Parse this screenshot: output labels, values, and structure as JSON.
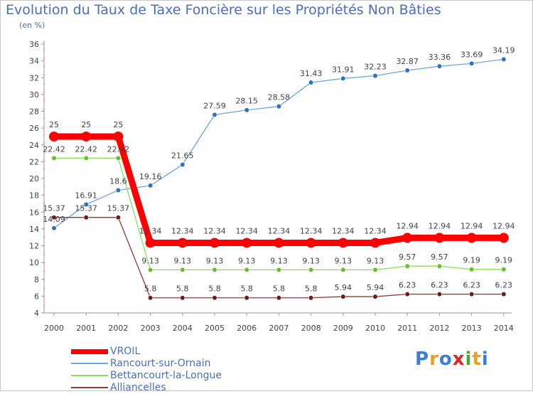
{
  "chart_data": {
    "type": "line",
    "title": "Evolution du Taux de Taxe Foncière sur les Propriétés Non Bâties",
    "ylabel": "(en %)",
    "xlabel": "",
    "ylim": [
      4,
      36
    ],
    "ytick_step": 2,
    "categories": [
      "2000",
      "2001",
      "2002",
      "2003",
      "2004",
      "2005",
      "2006",
      "2007",
      "2008",
      "2009",
      "2010",
      "2011",
      "2012",
      "2013",
      "2014"
    ],
    "series": [
      {
        "name": "VROIL",
        "color": "#ff0000",
        "style": "thick",
        "values": [
          25,
          25,
          25,
          12.34,
          12.34,
          12.34,
          12.34,
          12.34,
          12.34,
          12.34,
          12.34,
          12.94,
          12.94,
          12.94,
          12.94
        ],
        "labels": [
          "25",
          "25",
          "25",
          "12.34",
          "12.34",
          "12.34",
          "12.34",
          "12.34",
          "12.34",
          "12.34",
          "12.34",
          "12.94",
          "12.94",
          "12.94",
          "12.94"
        ]
      },
      {
        "name": "Rancourt-sur-Ornain",
        "color": "#6fa8dc",
        "marker": "#2f72b8",
        "style": "thin",
        "values": [
          14.09,
          16.91,
          18.6,
          19.16,
          21.65,
          27.59,
          28.15,
          28.58,
          31.43,
          31.91,
          32.23,
          32.87,
          33.36,
          33.69,
          34.19
        ],
        "labels": [
          "14.09",
          "16.91",
          "18.6",
          "19.16",
          "21.65",
          "27.59",
          "28.15",
          "28.58",
          "31.43",
          "31.91",
          "32.23",
          "32.87",
          "33.36",
          "33.69",
          "34.19"
        ]
      },
      {
        "name": "Bettancourt-la-Longue",
        "color": "#8edb5e",
        "marker": "#62bf2d",
        "style": "thin",
        "values": [
          22.42,
          22.42,
          22.42,
          9.13,
          9.13,
          9.13,
          9.13,
          9.13,
          9.13,
          9.13,
          9.13,
          9.57,
          9.57,
          9.19,
          9.19
        ],
        "labels": [
          "22.42",
          "22.42",
          "22.42",
          "9.13",
          "9.13",
          "9.13",
          "9.13",
          "9.13",
          "9.13",
          "9.13",
          "9.13",
          "9.57",
          "9.57",
          "9.19",
          "9.19"
        ]
      },
      {
        "name": "Alliancelles",
        "color": "#8b3a3a",
        "marker": "#6b1d1d",
        "style": "thin",
        "values": [
          15.37,
          15.37,
          15.37,
          5.8,
          5.8,
          5.8,
          5.8,
          5.8,
          5.8,
          5.94,
          5.94,
          6.23,
          6.23,
          6.23,
          6.23
        ],
        "labels": [
          "15.37",
          "15.37",
          "15.37",
          "5.8",
          "5.8",
          "5.8",
          "5.8",
          "5.8",
          "5.8",
          "5.94",
          "5.94",
          "6.23",
          "6.23",
          "6.23",
          "6.23"
        ]
      }
    ],
    "grid": false,
    "legend_position": "bottom-left"
  },
  "legend": {
    "items": [
      {
        "label": "VROIL",
        "color": "#ff0000"
      },
      {
        "label": "Rancourt-sur-Ornain",
        "color": "#6fa8dc"
      },
      {
        "label": "Bettancourt-la-Longue",
        "color": "#8edb5e"
      },
      {
        "label": "Alliancelles",
        "color": "#8b3a3a"
      }
    ]
  },
  "logo": {
    "letters": [
      "P",
      "r",
      "o",
      "x",
      "i",
      "t",
      "i"
    ],
    "colors": [
      "#3a7fd5",
      "#e8a020",
      "#3a7fd5",
      "#e02424",
      "#4aa830",
      "#e8a020",
      "#3a7fd5"
    ]
  }
}
